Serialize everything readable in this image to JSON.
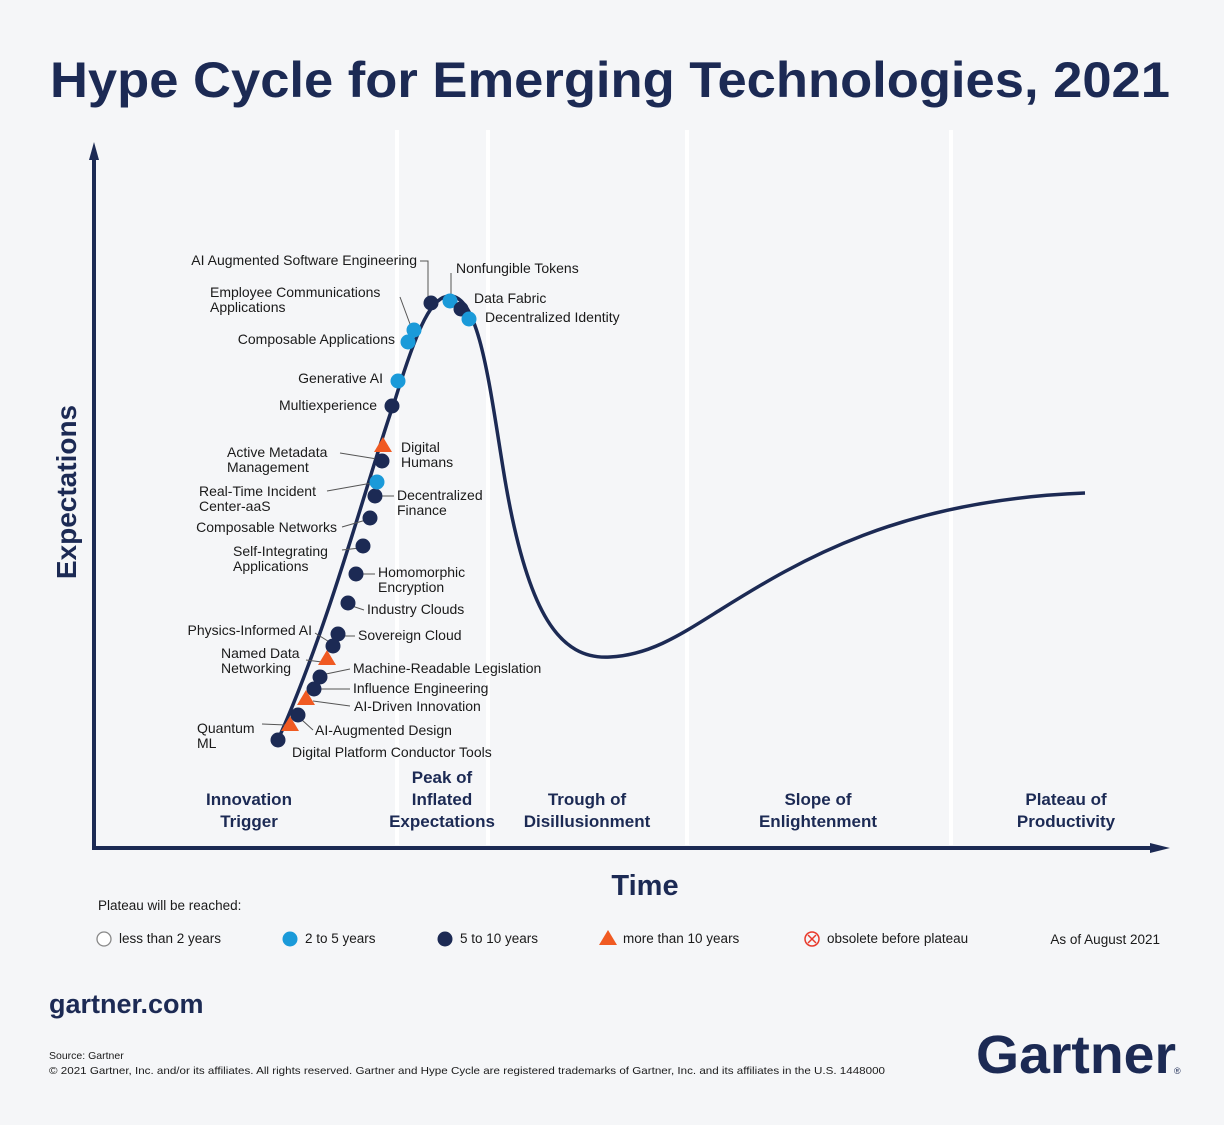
{
  "chart_data": {
    "type": "scatter",
    "title": "Hype Cycle for Emerging Technologies, 2021",
    "xlabel": "Time",
    "ylabel": "Expectations",
    "grid": false,
    "phases": [
      {
        "lines": [
          "Innovation",
          "Trigger"
        ]
      },
      {
        "lines": [
          "Peak of",
          "Inflated",
          "Expectations"
        ]
      },
      {
        "lines": [
          "Trough of",
          "Disillusionment"
        ]
      },
      {
        "lines": [
          "Slope of",
          "Enlightenment"
        ]
      },
      {
        "lines": [
          "Plateau of",
          "Productivity"
        ]
      }
    ],
    "legend_title": "Plateau will be reached:",
    "legend": [
      {
        "label": "less than 2 years",
        "marker": "hollow-circle",
        "color": "#ffffff"
      },
      {
        "label": "2 to 5 years",
        "marker": "circle",
        "color": "#1a9ad9"
      },
      {
        "label": "5 to 10 years",
        "marker": "circle",
        "color": "#1c2a54"
      },
      {
        "label": "more than 10 years",
        "marker": "triangle",
        "color": "#f05a22"
      },
      {
        "label": "obsolete before plateau",
        "marker": "crossed-circle",
        "color": "#e8392b"
      }
    ],
    "as_of": "As of August 2021",
    "points": [
      {
        "lines": [
          "Digital Platform Conductor Tools"
        ],
        "plateau": "5 to 10 years"
      },
      {
        "lines": [
          "Quantum",
          "ML"
        ],
        "plateau": "more than 10 years"
      },
      {
        "lines": [
          "AI-Augmented Design"
        ],
        "plateau": "5 to 10 years"
      },
      {
        "lines": [
          "AI-Driven Innovation"
        ],
        "plateau": "more than 10 years"
      },
      {
        "lines": [
          "Influence Engineering"
        ],
        "plateau": "5 to 10 years"
      },
      {
        "lines": [
          "Machine-Readable Legislation"
        ],
        "plateau": "5 to 10 years"
      },
      {
        "lines": [
          "Named Data",
          "Networking"
        ],
        "plateau": "more than 10 years"
      },
      {
        "lines": [
          "Physics-Informed AI"
        ],
        "plateau": "5 to 10 years"
      },
      {
        "lines": [
          "Sovereign Cloud"
        ],
        "plateau": "5 to 10 years"
      },
      {
        "lines": [
          "Industry Clouds"
        ],
        "plateau": "5 to 10 years"
      },
      {
        "lines": [
          "Homomorphic",
          "Encryption"
        ],
        "plateau": "5 to 10 years"
      },
      {
        "lines": [
          "Self-Integrating",
          "Applications"
        ],
        "plateau": "5 to 10 years"
      },
      {
        "lines": [
          "Composable Networks"
        ],
        "plateau": "5 to 10 years"
      },
      {
        "lines": [
          "Decentralized",
          "Finance"
        ],
        "plateau": "5 to 10 years"
      },
      {
        "lines": [
          "Real-Time Incident",
          "Center-aaS"
        ],
        "plateau": "2 to 5 years"
      },
      {
        "lines": [
          "Active Metadata",
          "Management"
        ],
        "plateau": "5 to 10 years"
      },
      {
        "lines": [
          "Digital",
          "Humans"
        ],
        "plateau": "more than 10 years"
      },
      {
        "lines": [
          "Multiexperience"
        ],
        "plateau": "5 to 10 years"
      },
      {
        "lines": [
          "Generative AI"
        ],
        "plateau": "2 to 5 years"
      },
      {
        "lines": [
          "Composable Applications"
        ],
        "plateau": "2 to 5 years"
      },
      {
        "lines": [
          "Employee Communications",
          "Applications"
        ],
        "plateau": "2 to 5 years"
      },
      {
        "lines": [
          "AI Augmented Software Engineering"
        ],
        "plateau": "5 to 10 years"
      },
      {
        "lines": [
          "Nonfungible Tokens"
        ],
        "plateau": "2 to 5 years"
      },
      {
        "lines": [
          "Data Fabric"
        ],
        "plateau": "5 to 10 years"
      },
      {
        "lines": [
          "Decentralized Identity"
        ],
        "plateau": "2 to 5 years"
      }
    ]
  },
  "footer": {
    "site": "gartner.com",
    "source": "Source: Gartner",
    "copyright": "© 2021 Gartner, Inc. and/or its affiliates. All rights reserved. Gartner and Hype Cycle are registered trademarks of Gartner, Inc. and its affiliates in the U.S. 1448000",
    "logo": "Gartner"
  }
}
